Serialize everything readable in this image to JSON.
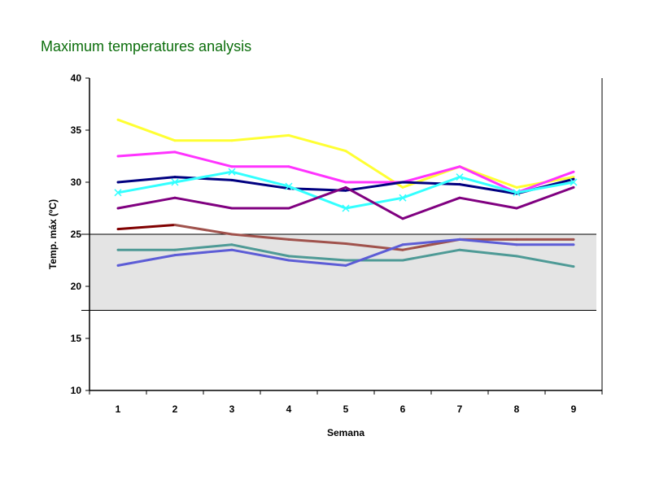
{
  "slide": {
    "title": "Maximum temperatures analysis"
  },
  "chart_data": {
    "type": "line",
    "title": "",
    "xlabel": "Semana",
    "ylabel": "Temp. máx (ºC)",
    "x": [
      1,
      2,
      3,
      4,
      5,
      6,
      7,
      8,
      9
    ],
    "ylim": [
      10,
      40
    ],
    "yticks": [
      10,
      15,
      20,
      25,
      30,
      35,
      40
    ],
    "grid": false,
    "legend": "none",
    "band": {
      "from": 17.7,
      "to": 25.0,
      "color": "#e4e4e4"
    },
    "series": [
      {
        "color": "#ffff33",
        "values": [
          36.0,
          34.0,
          34.0,
          34.5,
          33.0,
          29.5,
          31.5,
          29.5,
          30.5
        ]
      },
      {
        "color": "#ff33ff",
        "values": [
          32.5,
          32.9,
          31.5,
          31.5,
          30.0,
          30.0,
          31.5,
          29.0,
          31.0
        ]
      },
      {
        "color": "#000080",
        "values": [
          30.0,
          30.5,
          30.2,
          29.4,
          29.2,
          30.0,
          29.8,
          28.9,
          30.3
        ]
      },
      {
        "color": "#33ffff",
        "values": [
          29.0,
          30.0,
          31.0,
          29.6,
          27.5,
          28.5,
          30.5,
          29.0,
          30.0
        ],
        "marker": "x"
      },
      {
        "color": "#800080",
        "values": [
          27.5,
          28.5,
          27.5,
          27.5,
          29.5,
          26.5,
          28.5,
          27.5,
          29.5
        ]
      },
      {
        "color": "#800000",
        "values": [
          25.5,
          25.9,
          null,
          null,
          null,
          null,
          null,
          null,
          null
        ]
      },
      {
        "color": "#a0524c",
        "values": [
          null,
          25.9,
          25.0,
          24.5,
          24.1,
          23.5,
          24.5,
          24.5,
          24.5
        ]
      },
      {
        "color": "#4e9a96",
        "values": [
          23.5,
          23.5,
          24.0,
          22.9,
          22.5,
          22.5,
          23.5,
          22.9,
          21.9
        ]
      },
      {
        "color": "#5c5cd6",
        "values": [
          22.0,
          23.0,
          23.5,
          22.5,
          22.0,
          24.0,
          24.5,
          24.0,
          24.0
        ]
      }
    ]
  }
}
